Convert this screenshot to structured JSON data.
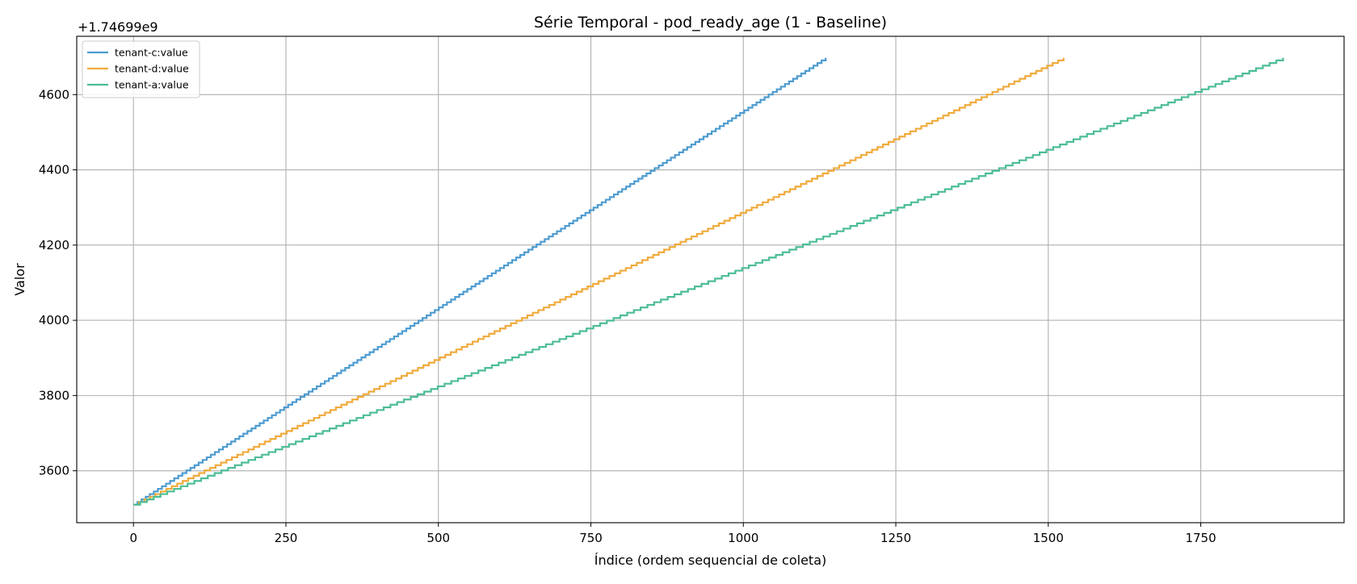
{
  "chart_data": {
    "type": "line",
    "title": "Série Temporal - pod_ready_age (1 - Baseline)",
    "xlabel": "Índice (ordem sequencial de coleta)",
    "ylabel": "Valor",
    "y_offset_label": "+1.74699e9",
    "xlim": [
      -93,
      1985
    ],
    "ylim": [
      3462,
      4755
    ],
    "x_ticks": [
      0,
      250,
      500,
      750,
      1000,
      1250,
      1500,
      1750
    ],
    "x_tick_labels": [
      "0",
      "250",
      "500",
      "750",
      "1000",
      "1250",
      "1500",
      "1750"
    ],
    "y_ticks": [
      3600,
      3800,
      4000,
      4200,
      4400,
      4600
    ],
    "y_tick_labels": [
      "3600",
      "3800",
      "4000",
      "4200",
      "4400",
      "4600"
    ],
    "grid": true,
    "legend_position": "top-left",
    "series": [
      {
        "name": "tenant-c:value",
        "color": "#4c9bd0",
        "style": "step",
        "x": [
          0,
          1135
        ],
        "y": [
          3510,
          4698
        ]
      },
      {
        "name": "tenant-d:value",
        "color": "#f0aa3c",
        "style": "step",
        "x": [
          0,
          1525
        ],
        "y": [
          3510,
          4698
        ]
      },
      {
        "name": "tenant-a:value",
        "color": "#4cbd94",
        "style": "step",
        "x": [
          0,
          1885
        ],
        "y": [
          3510,
          4698
        ]
      }
    ]
  }
}
